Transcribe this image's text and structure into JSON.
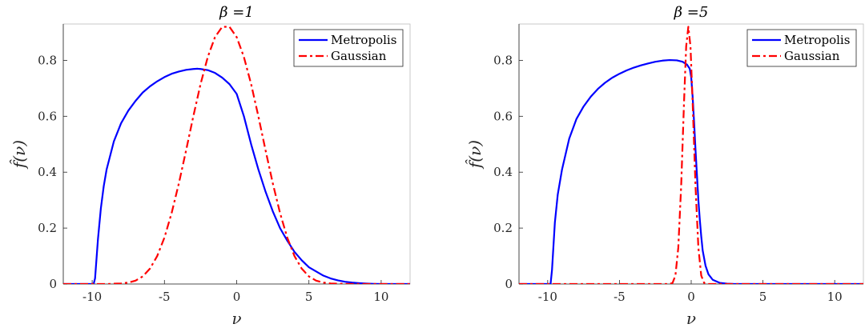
{
  "chart_data": [
    {
      "type": "line",
      "title": "β =1",
      "xlabel": "ν",
      "ylabel": "f̂(ν)",
      "xlim": [
        -12,
        12
      ],
      "ylim": [
        0,
        0.93
      ],
      "xticks": [
        -10,
        -5,
        0,
        5,
        10
      ],
      "xtick_labels": [
        "-10",
        "-5",
        "0",
        "5",
        "10"
      ],
      "yticks": [
        0,
        0.2,
        0.4,
        0.6,
        0.8
      ],
      "ytick_labels": [
        "0",
        "0.2",
        "0.4",
        "0.6",
        "0.8"
      ],
      "grid": false,
      "legend_position": "top-right",
      "series": [
        {
          "name": "Metropolis",
          "color": "#0000ff",
          "style": "solid",
          "points": [
            [
              -12,
              0
            ],
            [
              -10,
              0
            ],
            [
              -9.9,
              0
            ],
            [
              -9.8,
              0.02
            ],
            [
              -9.6,
              0.16
            ],
            [
              -9.4,
              0.27
            ],
            [
              -9.2,
              0.35
            ],
            [
              -9,
              0.41
            ],
            [
              -8.5,
              0.51
            ],
            [
              -8,
              0.575
            ],
            [
              -7.5,
              0.62
            ],
            [
              -7,
              0.655
            ],
            [
              -6.5,
              0.685
            ],
            [
              -6,
              0.707
            ],
            [
              -5.5,
              0.725
            ],
            [
              -5,
              0.74
            ],
            [
              -4.5,
              0.752
            ],
            [
              -4,
              0.76
            ],
            [
              -3.5,
              0.766
            ],
            [
              -3,
              0.769
            ],
            [
              -2.7,
              0.77
            ],
            [
              -2.5,
              0.769
            ],
            [
              -2,
              0.765
            ],
            [
              -1.5,
              0.755
            ],
            [
              -1,
              0.738
            ],
            [
              -0.5,
              0.715
            ],
            [
              0,
              0.68
            ],
            [
              0.5,
              0.6
            ],
            [
              1,
              0.5
            ],
            [
              1.5,
              0.41
            ],
            [
              2,
              0.33
            ],
            [
              2.5,
              0.26
            ],
            [
              3,
              0.2
            ],
            [
              3.5,
              0.155
            ],
            [
              4,
              0.115
            ],
            [
              4.5,
              0.085
            ],
            [
              5,
              0.06
            ],
            [
              5.5,
              0.045
            ],
            [
              6,
              0.03
            ],
            [
              6.5,
              0.02
            ],
            [
              7,
              0.013
            ],
            [
              7.5,
              0.008
            ],
            [
              8,
              0.005
            ],
            [
              8.5,
              0.003
            ],
            [
              9,
              0.0015
            ],
            [
              9.5,
              0.0005
            ],
            [
              10,
              0
            ],
            [
              12,
              0
            ]
          ]
        },
        {
          "name": "Gaussian",
          "color": "#ff0000",
          "style": "dashdot",
          "points": [
            [
              -12,
              0
            ],
            [
              -9,
              0
            ],
            [
              -8,
              0.002
            ],
            [
              -7.5,
              0.005
            ],
            [
              -7,
              0.012
            ],
            [
              -6.5,
              0.027
            ],
            [
              -6,
              0.055
            ],
            [
              -5.5,
              0.1
            ],
            [
              -5,
              0.166
            ],
            [
              -4.5,
              0.254
            ],
            [
              -4,
              0.36
            ],
            [
              -3.5,
              0.478
            ],
            [
              -3,
              0.6
            ],
            [
              -2.5,
              0.715
            ],
            [
              -2,
              0.812
            ],
            [
              -1.5,
              0.883
            ],
            [
              -1,
              0.92
            ],
            [
              -0.5,
              0.92
            ],
            [
              0,
              0.883
            ],
            [
              0.5,
              0.812
            ],
            [
              1,
              0.715
            ],
            [
              1.5,
              0.6
            ],
            [
              2,
              0.478
            ],
            [
              2.5,
              0.36
            ],
            [
              3,
              0.254
            ],
            [
              3.5,
              0.166
            ],
            [
              4,
              0.1
            ],
            [
              4.5,
              0.055
            ],
            [
              5,
              0.027
            ],
            [
              5.5,
              0.012
            ],
            [
              6,
              0.005
            ],
            [
              6.5,
              0.002
            ],
            [
              7,
              0.001
            ],
            [
              8,
              0
            ],
            [
              12,
              0
            ]
          ]
        }
      ]
    },
    {
      "type": "line",
      "title": "β =5",
      "xlabel": "ν",
      "ylabel": "f̂(ν)",
      "xlim": [
        -12,
        12
      ],
      "ylim": [
        0,
        0.93
      ],
      "xticks": [
        -10,
        -5,
        0,
        5,
        10
      ],
      "xtick_labels": [
        "-10",
        "-5",
        "0",
        "5",
        "10"
      ],
      "yticks": [
        0,
        0.2,
        0.4,
        0.6,
        0.8
      ],
      "ytick_labels": [
        "0",
        "0.2",
        "0.4",
        "0.6",
        "0.8"
      ],
      "grid": false,
      "legend_position": "top-right",
      "series": [
        {
          "name": "Metropolis",
          "color": "#0000ff",
          "style": "solid",
          "points": [
            [
              -12,
              0
            ],
            [
              -10,
              0
            ],
            [
              -9.8,
              0
            ],
            [
              -9.7,
              0.05
            ],
            [
              -9.5,
              0.22
            ],
            [
              -9.3,
              0.32
            ],
            [
              -9,
              0.41
            ],
            [
              -8.5,
              0.52
            ],
            [
              -8,
              0.59
            ],
            [
              -7.5,
              0.635
            ],
            [
              -7,
              0.67
            ],
            [
              -6.5,
              0.698
            ],
            [
              -6,
              0.72
            ],
            [
              -5.5,
              0.738
            ],
            [
              -5,
              0.752
            ],
            [
              -4.5,
              0.764
            ],
            [
              -4,
              0.774
            ],
            [
              -3.5,
              0.782
            ],
            [
              -3,
              0.789
            ],
            [
              -2.5,
              0.795
            ],
            [
              -2,
              0.799
            ],
            [
              -1.5,
              0.801
            ],
            [
              -1,
              0.8
            ],
            [
              -0.6,
              0.795
            ],
            [
              -0.3,
              0.785
            ],
            [
              -0.1,
              0.77
            ],
            [
              0,
              0.74
            ],
            [
              0.1,
              0.67
            ],
            [
              0.2,
              0.58
            ],
            [
              0.3,
              0.48
            ],
            [
              0.4,
              0.39
            ],
            [
              0.5,
              0.3
            ],
            [
              0.6,
              0.23
            ],
            [
              0.7,
              0.17
            ],
            [
              0.8,
              0.12
            ],
            [
              1,
              0.065
            ],
            [
              1.2,
              0.035
            ],
            [
              1.5,
              0.015
            ],
            [
              2,
              0.004
            ],
            [
              2.5,
              0.001
            ],
            [
              3,
              0
            ],
            [
              12,
              0
            ]
          ]
        },
        {
          "name": "Gaussian",
          "color": "#ff0000",
          "style": "dashdot",
          "points": [
            [
              -12,
              0
            ],
            [
              -1.5,
              0
            ],
            [
              -1.3,
              0.004
            ],
            [
              -1.1,
              0.03
            ],
            [
              -0.9,
              0.13
            ],
            [
              -0.7,
              0.35
            ],
            [
              -0.5,
              0.65
            ],
            [
              -0.35,
              0.85
            ],
            [
              -0.2,
              0.92
            ],
            [
              -0.05,
              0.85
            ],
            [
              0.1,
              0.65
            ],
            [
              0.3,
              0.35
            ],
            [
              0.5,
              0.13
            ],
            [
              0.7,
              0.03
            ],
            [
              0.9,
              0.004
            ],
            [
              1.1,
              0
            ],
            [
              12,
              0
            ]
          ]
        }
      ]
    }
  ]
}
